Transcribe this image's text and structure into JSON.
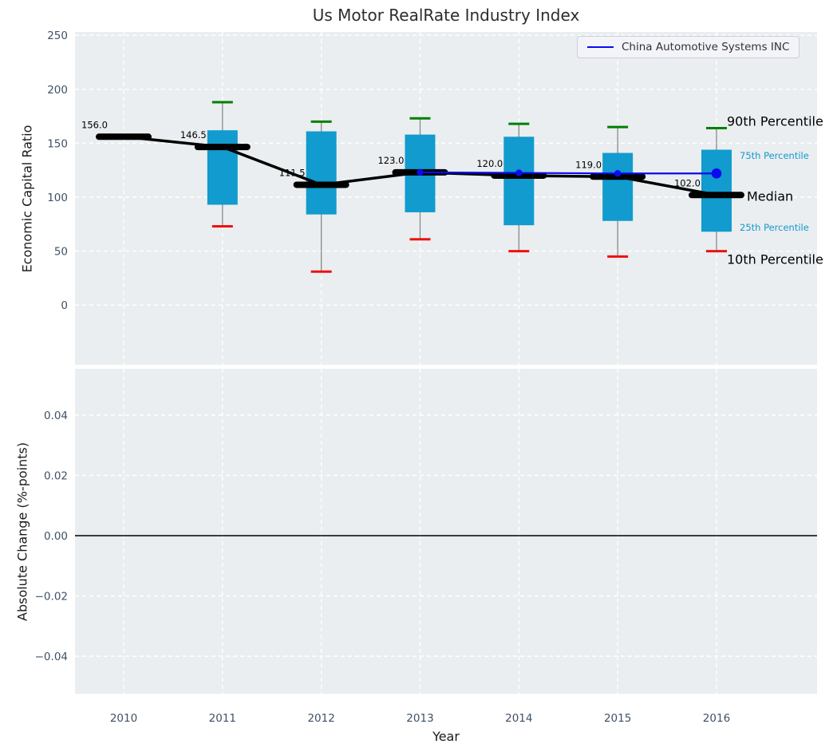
{
  "colors": {
    "figure_bg": "#ffffff",
    "plot_bg": "#eaeef0",
    "grid": "#ffffff",
    "box_fill": "#119bce",
    "whisker": "#888888",
    "cap_high": "#008000",
    "cap_low": "#ee1111",
    "median_line": "#000000",
    "company_line": "#0b0bee",
    "tick_label": "#3f5166",
    "title_text": "#2d2d2d",
    "percentile_small_label": "#1599cc",
    "annotation_text": "#000000",
    "zero_line": "#000000"
  },
  "chart_data": [
    {
      "type": "box",
      "title": "Us Motor RealRate Industry Index",
      "ylabel": "Economic Capital Ratio",
      "grid": true,
      "legend": {
        "position": "upper right",
        "entries": [
          {
            "label": "China Automotive Systems INC",
            "color": "#0b0bee"
          }
        ]
      },
      "x_years": [
        2010,
        2011,
        2012,
        2013,
        2014,
        2015,
        2016
      ],
      "yticks": [
        0,
        50,
        100,
        150,
        200,
        250
      ],
      "ylim": [
        -55,
        253
      ],
      "xlim": [
        2009.5,
        2017.05
      ],
      "boxes": [
        {
          "year": 2010,
          "median": 156.0,
          "median_label": "156.0"
        },
        {
          "year": 2011,
          "median": 146.5,
          "median_label": "146.5",
          "p90": 188,
          "p75": 162,
          "p25": 93,
          "p10": 73
        },
        {
          "year": 2012,
          "median": 111.5,
          "median_label": "111.5",
          "p90": 170,
          "p75": 161,
          "p25": 84,
          "p10": 31
        },
        {
          "year": 2013,
          "median": 123.0,
          "median_label": "123.0",
          "p90": 173,
          "p75": 158,
          "p25": 86,
          "p10": 61
        },
        {
          "year": 2014,
          "median": 120.0,
          "median_label": "120.0",
          "p90": 168,
          "p75": 156,
          "p25": 74,
          "p10": 50
        },
        {
          "year": 2015,
          "median": 119.0,
          "median_label": "119.0",
          "p90": 165,
          "p75": 141,
          "p25": 78,
          "p10": 45
        },
        {
          "year": 2016,
          "median": 102.0,
          "median_label": "102.0",
          "p90": 164,
          "p75": 144,
          "p25": 68,
          "p10": 50
        }
      ],
      "company_series": {
        "name": "China Automotive Systems INC",
        "x": [
          2013,
          2014,
          2015,
          2016
        ],
        "y": [
          123,
          122.5,
          122,
          122
        ]
      },
      "percentile_labels": {
        "p90": "90th Percentile",
        "p75": "75th Percentile",
        "median": "Median",
        "p25": "25th Percentile",
        "p10": "10th Percentile"
      }
    },
    {
      "type": "line",
      "ylabel": "Absolute Change (%-points)",
      "xlabel": "Year",
      "x_years": [
        2010,
        2011,
        2012,
        2013,
        2014,
        2015,
        2016
      ],
      "yticks": [
        0.04,
        0.02,
        0.0,
        -0.02,
        -0.04
      ],
      "ylim": [
        -0.0525,
        0.0551
      ],
      "zero_line": 0.0,
      "series": []
    }
  ]
}
